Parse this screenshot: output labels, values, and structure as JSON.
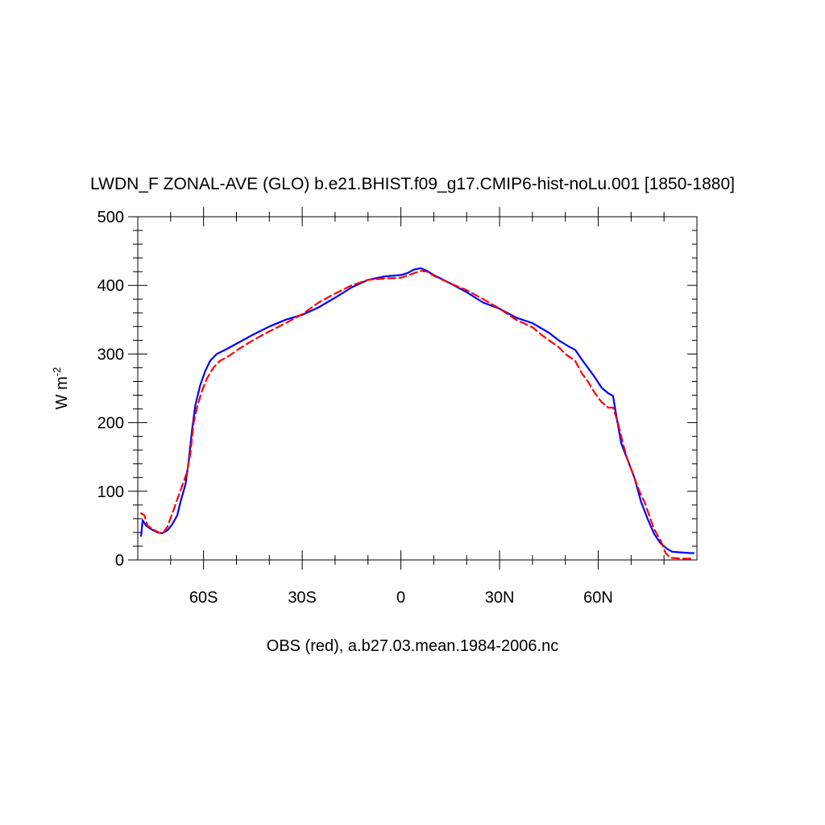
{
  "chart_data": {
    "type": "line",
    "title": "LWDN_F ZONAL-AVE (GLO) b.e21.BHIST.f09_g17.CMIP6-hist-noLu.001 [1850-1880]",
    "ylabel_main": "W m",
    "ylabel_sup": "-2",
    "xlabel": "OBS (red), a.b27.03.mean.1984-2006.nc",
    "xlim": [
      -80,
      90
    ],
    "ylim": [
      0,
      500
    ],
    "x_ticks": [
      {
        "value": -60,
        "label": "60S"
      },
      {
        "value": -30,
        "label": "30S"
      },
      {
        "value": 0,
        "label": "0"
      },
      {
        "value": 30,
        "label": "30N"
      },
      {
        "value": 60,
        "label": "60N"
      }
    ],
    "y_ticks": [
      {
        "value": 0,
        "label": "0"
      },
      {
        "value": 100,
        "label": "100"
      },
      {
        "value": 200,
        "label": "200"
      },
      {
        "value": 300,
        "label": "300"
      },
      {
        "value": 400,
        "label": "400"
      },
      {
        "value": 500,
        "label": "500"
      }
    ],
    "series": [
      {
        "color": "#0000ff",
        "style": "solid",
        "points": [
          [
            -79,
            35
          ],
          [
            -78.5,
            58
          ],
          [
            -77.5,
            50
          ],
          [
            -76,
            45
          ],
          [
            -74,
            40
          ],
          [
            -72.5,
            39
          ],
          [
            -71,
            43
          ],
          [
            -69.5,
            52
          ],
          [
            -68,
            65
          ],
          [
            -67,
            85
          ],
          [
            -65.5,
            110
          ],
          [
            -64.5,
            145
          ],
          [
            -63.5,
            190
          ],
          [
            -62.5,
            225
          ],
          [
            -61,
            255
          ],
          [
            -59.5,
            275
          ],
          [
            -58,
            290
          ],
          [
            -56,
            300
          ],
          [
            -53,
            307
          ],
          [
            -50,
            315
          ],
          [
            -45,
            328
          ],
          [
            -40,
            340
          ],
          [
            -35,
            350
          ],
          [
            -30,
            357
          ],
          [
            -25,
            368
          ],
          [
            -20,
            382
          ],
          [
            -15,
            397
          ],
          [
            -10,
            408
          ],
          [
            -5,
            413
          ],
          [
            0,
            415
          ],
          [
            2,
            418
          ],
          [
            4,
            423
          ],
          [
            6,
            425
          ],
          [
            8,
            421
          ],
          [
            10,
            415
          ],
          [
            15,
            403
          ],
          [
            20,
            390
          ],
          [
            25,
            375
          ],
          [
            30,
            366
          ],
          [
            35,
            353
          ],
          [
            40,
            345
          ],
          [
            45,
            331
          ],
          [
            48,
            320
          ],
          [
            51,
            311
          ],
          [
            53,
            306
          ],
          [
            55,
            292
          ],
          [
            57,
            279
          ],
          [
            59,
            266
          ],
          [
            61,
            251
          ],
          [
            63,
            243
          ],
          [
            64.5,
            239
          ],
          [
            65.5,
            210
          ],
          [
            67,
            170
          ],
          [
            69,
            145
          ],
          [
            71,
            120
          ],
          [
            73,
            85
          ],
          [
            75,
            60
          ],
          [
            77,
            38
          ],
          [
            79,
            24
          ],
          [
            81,
            16
          ],
          [
            82.5,
            12
          ],
          [
            85,
            11
          ],
          [
            88,
            10
          ],
          [
            89,
            10
          ]
        ]
      },
      {
        "color": "#ff0000",
        "style": "dashed",
        "points": [
          [
            -79,
            68
          ],
          [
            -78,
            65
          ],
          [
            -77,
            50
          ],
          [
            -75.5,
            45
          ],
          [
            -74,
            41
          ],
          [
            -72.5,
            38
          ],
          [
            -71,
            48
          ],
          [
            -69.5,
            68
          ],
          [
            -68,
            88
          ],
          [
            -66.5,
            108
          ],
          [
            -65,
            128
          ],
          [
            -64,
            155
          ],
          [
            -63,
            200
          ],
          [
            -62,
            222
          ],
          [
            -60.5,
            246
          ],
          [
            -59,
            264
          ],
          [
            -57,
            280
          ],
          [
            -55,
            290
          ],
          [
            -52,
            298
          ],
          [
            -50,
            305
          ],
          [
            -45,
            320
          ],
          [
            -40,
            333
          ],
          [
            -35,
            345
          ],
          [
            -30,
            358
          ],
          [
            -25,
            375
          ],
          [
            -20,
            388
          ],
          [
            -15,
            400
          ],
          [
            -10,
            408
          ],
          [
            -5,
            410
          ],
          [
            0,
            411
          ],
          [
            3,
            416
          ],
          [
            6,
            421
          ],
          [
            8,
            420
          ],
          [
            10,
            414
          ],
          [
            15,
            403
          ],
          [
            20,
            393
          ],
          [
            25,
            380
          ],
          [
            30,
            366
          ],
          [
            35,
            350
          ],
          [
            40,
            339
          ],
          [
            43,
            327
          ],
          [
            45,
            320
          ],
          [
            48,
            310
          ],
          [
            50,
            300
          ],
          [
            53,
            290
          ],
          [
            55,
            272
          ],
          [
            57,
            259
          ],
          [
            59,
            243
          ],
          [
            61,
            230
          ],
          [
            63,
            222
          ],
          [
            64.5,
            222
          ],
          [
            66,
            200
          ],
          [
            67.5,
            170
          ],
          [
            69,
            145
          ],
          [
            71,
            120
          ],
          [
            72.5,
            100
          ],
          [
            74,
            85
          ],
          [
            75.5,
            65
          ],
          [
            77,
            45
          ],
          [
            79,
            28
          ],
          [
            80.5,
            10
          ],
          [
            82,
            3
          ],
          [
            85,
            2
          ],
          [
            89,
            2
          ]
        ]
      }
    ]
  }
}
